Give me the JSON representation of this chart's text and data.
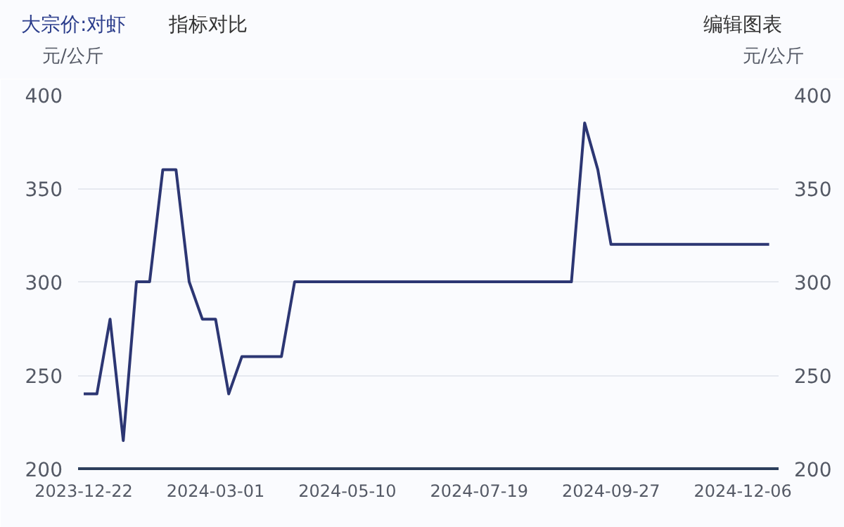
{
  "chart_data": {
    "type": "line",
    "title": "大宗价:对虾",
    "ylabel": "元/公斤",
    "y2label": "元/公斤",
    "annotations": [
      "指标对比",
      "编辑图表"
    ],
    "x": [
      "2023-12-22",
      "2023-12-29",
      "2024-01-05",
      "2024-01-12",
      "2024-01-19",
      "2024-01-26",
      "2024-02-02",
      "2024-02-09",
      "2024-02-16",
      "2024-02-23",
      "2024-03-01",
      "2024-03-08",
      "2024-03-15",
      "2024-04-05",
      "2024-04-12",
      "2024-09-06",
      "2024-09-13",
      "2024-09-20",
      "2024-09-27",
      "2024-12-20"
    ],
    "series": [
      {
        "color": "#2c3673",
        "values": [
          240,
          240,
          280,
          215,
          300,
          300,
          360,
          360,
          300,
          280,
          280,
          240,
          260,
          260,
          300,
          300,
          385,
          360,
          320,
          320
        ]
      }
    ],
    "xlim": [
      "2023-12-19",
      "2024-12-25"
    ],
    "xticks": [
      "2023-12-22",
      "2024-03-01",
      "2024-05-10",
      "2024-07-19",
      "2024-09-27",
      "2024-12-06"
    ],
    "ylim": [
      200,
      400
    ],
    "yticks": [
      200,
      250,
      300,
      350,
      400
    ],
    "y2lim": [
      200,
      400
    ],
    "y2ticks": [
      200,
      250,
      300,
      350,
      400
    ],
    "grid": "y",
    "marker": "none",
    "line_style": "solid"
  }
}
